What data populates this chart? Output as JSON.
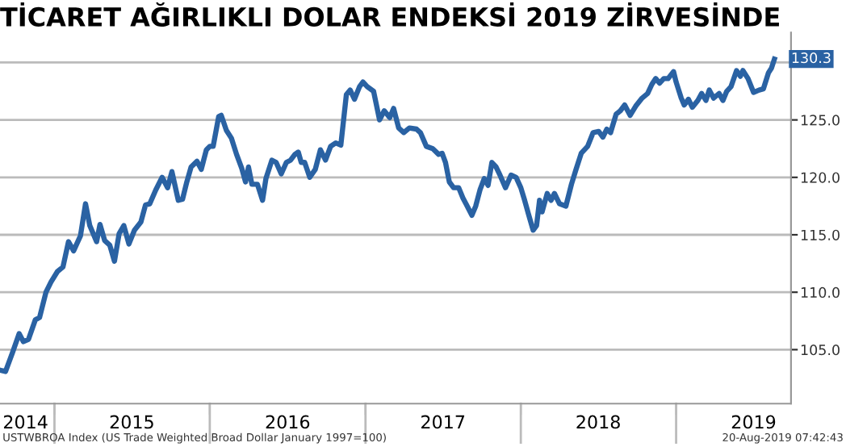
{
  "chart_data": {
    "type": "line",
    "title": "TİCARET AĞIRLIKLI DOLAR ENDEKSİ 2019 ZİRVESİNDE",
    "x": [
      "2014-08-28",
      "2014-09-08",
      "2014-09-25",
      "2014-10-10",
      "2014-10-20",
      "2014-11-01",
      "2014-11-17",
      "2014-11-27",
      "2014-12-12",
      "2014-12-24",
      "2015-01-08",
      "2015-01-21",
      "2015-02-03",
      "2015-02-15",
      "2015-03-03",
      "2015-03-15",
      "2015-03-25",
      "2015-04-10",
      "2015-04-18",
      "2015-04-29",
      "2015-05-11",
      "2015-05-22",
      "2015-06-02",
      "2015-06-13",
      "2015-06-25",
      "2015-07-08",
      "2015-07-23",
      "2015-08-03",
      "2015-08-13",
      "2015-08-27",
      "2015-09-11",
      "2015-09-24",
      "2015-10-04",
      "2015-10-19",
      "2015-10-29",
      "2015-11-08",
      "2015-11-18",
      "2015-12-02",
      "2015-12-12",
      "2015-12-24",
      "2016-01-01",
      "2016-01-09",
      "2016-01-22",
      "2016-01-28",
      "2016-02-09",
      "2016-02-21",
      "2016-03-04",
      "2016-03-16",
      "2016-03-25",
      "2016-04-01",
      "2016-04-09",
      "2016-04-22",
      "2016-05-04",
      "2016-05-12",
      "2016-05-26",
      "2016-06-05",
      "2016-06-17",
      "2016-06-29",
      "2016-07-09",
      "2016-07-19",
      "2016-07-27",
      "2016-08-03",
      "2016-08-11",
      "2016-08-23",
      "2016-09-05",
      "2016-09-17",
      "2016-09-29",
      "2016-10-11",
      "2016-10-23",
      "2016-11-04",
      "2016-11-17",
      "2016-11-26",
      "2016-12-06",
      "2016-12-18",
      "2016-12-26",
      "2017-01-05",
      "2017-01-20",
      "2017-02-03",
      "2017-02-14",
      "2017-02-27",
      "2017-03-08",
      "2017-03-20",
      "2017-04-01",
      "2017-04-14",
      "2017-05-01",
      "2017-05-10",
      "2017-05-24",
      "2017-06-08",
      "2017-06-22",
      "2017-06-30",
      "2017-07-08",
      "2017-07-17",
      "2017-07-27",
      "2017-08-08",
      "2017-08-18",
      "2017-08-28",
      "2017-09-08",
      "2017-09-17",
      "2017-09-27",
      "2017-10-07",
      "2017-10-16",
      "2017-10-25",
      "2017-11-04",
      "2017-11-13",
      "2017-11-26",
      "2017-12-09",
      "2017-12-21",
      "2018-01-01",
      "2018-01-10",
      "2018-01-19",
      "2018-01-30",
      "2018-02-07",
      "2018-02-14",
      "2018-02-20",
      "2018-03-04",
      "2018-03-13",
      "2018-03-21",
      "2018-04-02",
      "2018-04-17",
      "2018-04-30",
      "2018-05-10",
      "2018-05-23",
      "2018-06-07",
      "2018-06-20",
      "2018-07-03",
      "2018-07-13",
      "2018-07-22",
      "2018-07-31",
      "2018-08-13",
      "2018-08-23",
      "2018-09-02",
      "2018-09-15",
      "2018-09-28",
      "2018-10-13",
      "2018-10-26",
      "2018-11-05",
      "2018-11-14",
      "2018-11-23",
      "2018-12-03",
      "2018-12-13",
      "2018-12-26",
      "2019-01-01",
      "2019-01-13",
      "2019-01-20",
      "2019-01-30",
      "2019-02-08",
      "2019-02-21",
      "2019-03-02",
      "2019-03-12",
      "2019-03-20",
      "2019-03-30",
      "2019-04-12",
      "2019-04-21",
      "2019-04-30",
      "2019-05-10",
      "2019-05-23",
      "2019-06-01",
      "2019-06-07",
      "2019-06-19",
      "2019-07-02",
      "2019-07-15",
      "2019-07-25",
      "2019-08-06",
      "2019-08-13",
      "2019-08-20"
    ],
    "series": [
      {
        "color": "#2a62a3",
        "values": [
          103.2,
          103.1,
          104.8,
          106.4,
          105.7,
          105.9,
          107.6,
          107.8,
          110.0,
          110.9,
          111.8,
          112.2,
          114.4,
          113.6,
          114.9,
          117.7,
          115.8,
          114.4,
          115.9,
          114.5,
          114.1,
          112.7,
          115.1,
          115.8,
          114.2,
          115.4,
          116.1,
          117.6,
          117.7,
          118.9,
          120.0,
          119.1,
          120.5,
          118.0,
          118.1,
          119.6,
          120.9,
          121.4,
          120.7,
          122.4,
          122.7,
          122.7,
          125.3,
          125.4,
          124.1,
          123.4,
          122.0,
          120.8,
          119.6,
          120.9,
          119.4,
          119.4,
          118.0,
          119.9,
          121.5,
          121.3,
          120.3,
          121.3,
          121.5,
          122.0,
          122.2,
          121.3,
          121.3,
          120.0,
          120.7,
          122.4,
          121.5,
          122.7,
          123.0,
          122.8,
          127.2,
          127.6,
          126.8,
          127.9,
          128.3,
          127.9,
          127.5,
          125.0,
          125.8,
          125.2,
          126.0,
          124.3,
          123.9,
          124.3,
          124.2,
          123.9,
          122.7,
          122.5,
          122.0,
          122.1,
          121.3,
          119.6,
          119.1,
          119.1,
          118.2,
          117.5,
          116.7,
          117.5,
          118.9,
          119.9,
          119.3,
          121.3,
          120.9,
          120.2,
          119.1,
          120.2,
          120.0,
          119.1,
          118.0,
          116.8,
          115.4,
          115.8,
          118.0,
          117.0,
          118.6,
          118.0,
          118.6,
          117.7,
          117.5,
          119.4,
          120.6,
          122.1,
          122.7,
          123.9,
          124.0,
          123.5,
          124.2,
          123.9,
          125.5,
          125.8,
          126.3,
          125.4,
          126.2,
          126.9,
          127.3,
          128.1,
          128.6,
          128.2,
          128.6,
          128.6,
          129.2,
          128.3,
          126.9,
          126.3,
          126.8,
          126.1,
          126.7,
          127.3,
          126.7,
          127.6,
          126.9,
          127.3,
          126.7,
          127.5,
          127.9,
          129.3,
          128.8,
          129.3,
          128.6,
          127.4,
          127.6,
          127.7,
          129.1,
          129.5,
          130.3
        ]
      }
    ],
    "xlim": [
      "2014-08-26",
      "2019-09-28"
    ],
    "xticks": [
      {
        "value": "2015-01-01",
        "label": null
      },
      {
        "value": "2016-01-01",
        "label": null
      },
      {
        "value": "2017-01-01",
        "label": null
      },
      {
        "value": "2018-01-01",
        "label": null
      },
      {
        "value": "2019-01-01",
        "label": null
      },
      {
        "value": "2014-10-25",
        "label": "2014"
      },
      {
        "value": "2015-07-02",
        "label": "2015"
      },
      {
        "value": "2016-07-02",
        "label": "2016"
      },
      {
        "value": "2017-07-02",
        "label": "2017"
      },
      {
        "value": "2018-07-02",
        "label": "2018"
      },
      {
        "value": "2019-07-02",
        "label": "2019"
      }
    ],
    "ylim": [
      100.3,
      132.6
    ],
    "yticks": [
      {
        "value": 105,
        "label": "105.0"
      },
      {
        "value": 110,
        "label": "110.0"
      },
      {
        "value": 115,
        "label": "115.0"
      },
      {
        "value": 120,
        "label": "120.0"
      },
      {
        "value": 125,
        "label": "125.0"
      },
      {
        "value": 130,
        "label": null
      }
    ],
    "grid": "y",
    "legend": false,
    "marker": "none",
    "line_style": "solid",
    "annotations": [
      {
        "text": "130.3",
        "x": "2019-08-20",
        "y": 130.3
      },
      "USTWBROA Index (US Trade Weighted Broad Dollar January 1997=100)",
      "20-Aug-2019 07:42:43"
    ]
  }
}
